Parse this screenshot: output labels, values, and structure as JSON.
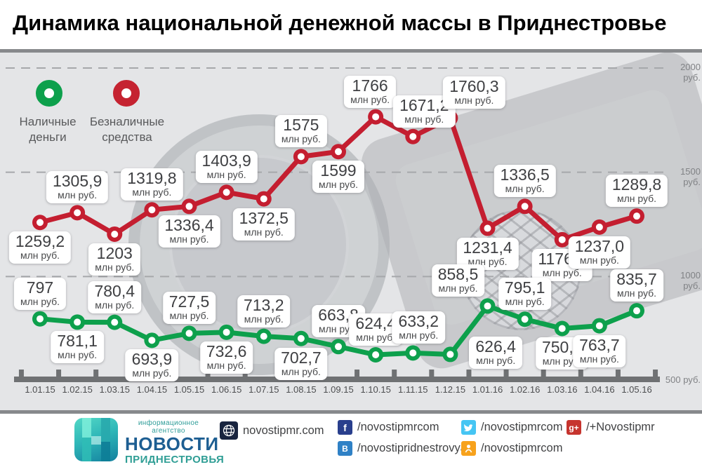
{
  "title": "Динамика национальной денежной массы в Приднестровье",
  "legend": {
    "items": [
      {
        "name": "Наличные деньги",
        "lines": [
          "Наличные",
          "деньги"
        ],
        "color": "#0da04c"
      },
      {
        "name": "Безналичные средства",
        "lines": [
          "Безналичные",
          "средства"
        ],
        "color": "#c52331"
      }
    ]
  },
  "chart_data": {
    "type": "line",
    "title": "Динамика национальной денежной массы в Приднестровье",
    "unit": "млн руб.",
    "categories": [
      "1.01.15",
      "1.02.15",
      "1.03.15",
      "1.04.15",
      "1.05.15",
      "1.06.15",
      "1.07.15",
      "1.08.15",
      "1.09.15",
      "1.10.15",
      "1.11.15",
      "1.12.15",
      "1.01.16",
      "1.02.16",
      "1.03.16",
      "1.04.16",
      "1.05.16"
    ],
    "y_axis": {
      "min": 500,
      "max": 2000,
      "step": 500,
      "grid": "dashed",
      "ticks": [
        {
          "label": "2000 руб.",
          "value": 2000,
          "line": true
        },
        {
          "label": "1500 руб.",
          "value": 1500,
          "line": true
        },
        {
          "label": "1000 руб.",
          "value": 1000,
          "line": true
        },
        {
          "label": "500 руб.",
          "value": 500,
          "line": false
        }
      ]
    },
    "series": [
      {
        "name": "Безналичные средства",
        "color": "#c41e30",
        "values": [
          1259.2,
          1305.9,
          1203,
          1319.8,
          1336.4,
          1403.9,
          1372.5,
          1575,
          1599,
          1766,
          1671.2,
          1760.3,
          1231.4,
          1336.5,
          1176.6,
          1237.0,
          1289.8
        ],
        "value_labels": [
          "1259,2",
          "1305,9",
          "1203",
          "1319,8",
          "1336,4",
          "1403,9",
          "1372,5",
          "1575",
          "1599",
          "1766",
          "1671,2",
          "1760,3",
          "1231,4",
          "1336,5",
          "1176,6",
          "1237,0",
          "1289,8"
        ],
        "label_pos": [
          "below",
          "above",
          "below",
          "above",
          "below",
          "above",
          "below",
          "above",
          "below",
          "above",
          "above",
          "above-right",
          "below",
          "above",
          "below",
          "below",
          "above"
        ],
        "label_dx": {
          "9": -8,
          "10": 16
        }
      },
      {
        "name": "Наличные деньги",
        "color": "#0da04c",
        "values": [
          797,
          781.1,
          780.4,
          693.9,
          727.5,
          732.6,
          713.2,
          702.7,
          663.8,
          624.4,
          633.2,
          626.4,
          858.5,
          795.1,
          750.6,
          763.7,
          835.7
        ],
        "value_labels": [
          "797",
          "781,1",
          "780,4",
          "693,9",
          "727,5",
          "732,6",
          "713,2",
          "702,7",
          "663,8",
          "624,4",
          "633,2",
          "626,4",
          "858,5",
          "795,1",
          "750,6",
          "763,7",
          "835,7"
        ],
        "label_pos": [
          "above",
          "below",
          "above",
          "below",
          "above",
          "below",
          "above",
          "below",
          "above",
          "above",
          "above",
          "right",
          "above-left",
          "above",
          "below",
          "below",
          "above"
        ],
        "label_dx": {
          "10": 8
        }
      }
    ]
  },
  "footer": {
    "agency": {
      "tagline": "информационное агентство",
      "name": "НОВОСТИ",
      "region": "ПРИДНЕСТРОВЬЯ"
    },
    "website": {
      "label": "novostipmr.com"
    },
    "social": [
      {
        "network": "facebook",
        "handle": "/novostipmrcom",
        "color": "#293f8d"
      },
      {
        "network": "vk",
        "handle": "/novostipridnestrovya",
        "color": "#2f81c6"
      },
      {
        "network": "twitter",
        "handle": "/novostipmrcom",
        "color": "#45c5f3"
      },
      {
        "network": "odnoklassniki",
        "handle": "/novostipmrcom",
        "color": "#f7a21c"
      },
      {
        "network": "google-plus",
        "handle": "/+Novostipmr",
        "color": "#c6342e"
      }
    ]
  }
}
